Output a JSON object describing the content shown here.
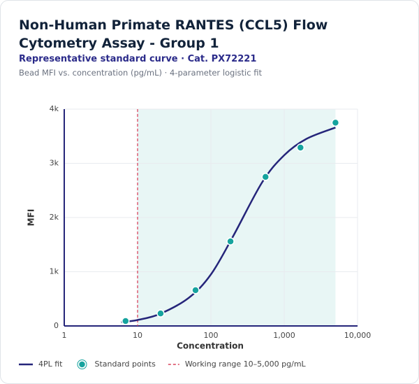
{
  "chart_data": {
    "type": "scatter",
    "title": "Non-Human Primate RANTES (CCL5) Flow Cytometry Assay - Group 1",
    "subtitle": "Representative standard curve · Cat. PX72221",
    "note": "Bead MFI vs. concentration (pg/mL) · 4-parameter logistic fit",
    "x_label": "Concentration",
    "y_label": "MFI",
    "xscale": "log",
    "xlim": [
      1,
      10000
    ],
    "xticks": [
      1,
      10,
      100,
      {
        "value": 1000,
        "label": "1,000"
      },
      {
        "value": 10000,
        "label": "10,000"
      }
    ],
    "ylim": [
      0,
      4000
    ],
    "yticks": [
      0,
      {
        "value": 1000,
        "label": "1k"
      },
      {
        "value": 2000,
        "label": "2k"
      },
      {
        "value": 3000,
        "label": "3k"
      },
      {
        "value": 4000,
        "label": "4k"
      }
    ],
    "grid": true,
    "series": [
      {
        "name": "4PL fit",
        "type": "line",
        "color": "#25257a",
        "x": [
          6,
          10,
          20,
          50,
          100,
          200,
          500,
          1000,
          2000,
          5000
        ],
        "values": [
          70,
          110,
          220,
          520,
          950,
          1650,
          2650,
          3150,
          3450,
          3660
        ]
      },
      {
        "name": "Standard points",
        "type": "scatter",
        "color": "#16a39e",
        "x": [
          6.86,
          20.6,
          61.7,
          185,
          556,
          1667,
          5000
        ],
        "values": [
          90,
          230,
          660,
          1560,
          2750,
          3290,
          3750
        ]
      }
    ],
    "working_range": {
      "label": "Working range 10–5,000 pg/mL",
      "range": [
        10,
        5000
      ],
      "color": "#d9455f",
      "fill": "#e8f6f5"
    }
  }
}
